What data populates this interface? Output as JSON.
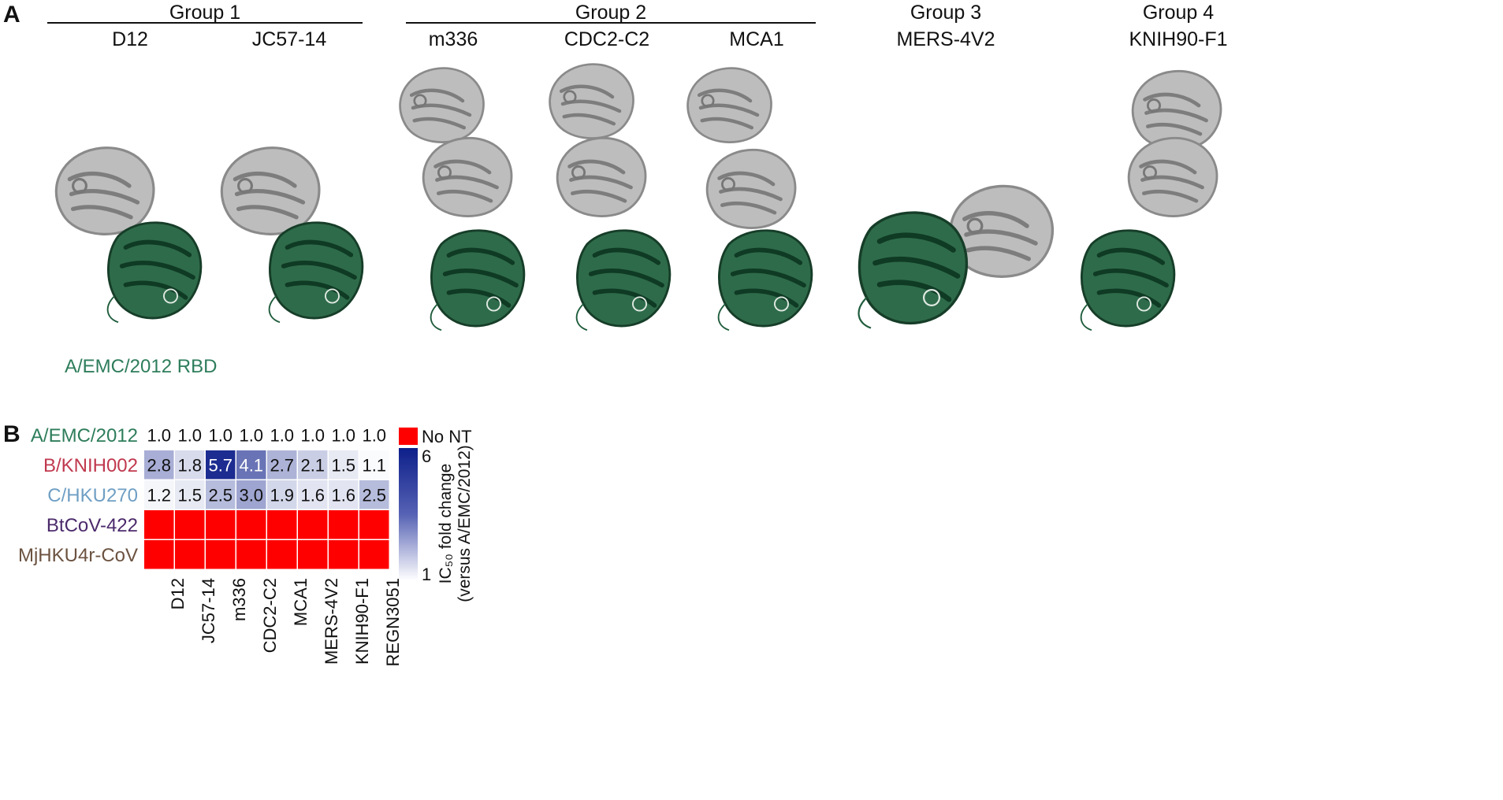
{
  "panel_a": {
    "letter": "A",
    "groups": [
      {
        "title": "Group 1",
        "antibodies": [
          "D12",
          "JC57-14"
        ]
      },
      {
        "title": "Group 2",
        "antibodies": [
          "m336",
          "CDC2-C2",
          "MCA1"
        ]
      },
      {
        "title": "Group 3",
        "antibodies": [
          "MERS-4V2"
        ]
      },
      {
        "title": "Group 4",
        "antibodies": [
          "KNIH90-F1"
        ]
      }
    ],
    "rbd_caption": "A/EMC/2012 RBD",
    "colors": {
      "rbd": "#1f5c3c",
      "antibody": "#a9a9a9",
      "rbd_caption": "#2e7d5b"
    }
  },
  "panel_b": {
    "letter": "B",
    "legend": {
      "no_nt_label": "No NT",
      "no_nt_color": "#ff0000",
      "max_label": "6",
      "min_label": "1",
      "axis_title_line1": "IC₅₀ fold change",
      "axis_title_line2": "(versus A/EMC/2012)",
      "color_low": "#ffffff",
      "color_high": "#0d1f8a"
    },
    "chart_data": {
      "type": "heatmap",
      "columns": [
        "D12",
        "JC57-14",
        "m336",
        "CDC2-C2",
        "MCA1",
        "MERS-4V2",
        "KNIH90-F1",
        "REGN3051"
      ],
      "rows": [
        {
          "label": "A/EMC/2012",
          "color": "#2e7d5b",
          "values": [
            1.0,
            1.0,
            1.0,
            1.0,
            1.0,
            1.0,
            1.0,
            1.0
          ],
          "text": [
            "1.0",
            "1.0",
            "1.0",
            "1.0",
            "1.0",
            "1.0",
            "1.0",
            "1.0"
          ]
        },
        {
          "label": "B/KNIH002",
          "color": "#c0394e",
          "values": [
            2.8,
            1.8,
            5.7,
            4.1,
            2.7,
            2.1,
            1.5,
            1.1
          ],
          "text": [
            "2.8",
            "1.8",
            "5.7",
            "4.1",
            "2.7",
            "2.1",
            "1.5",
            "1.1"
          ]
        },
        {
          "label": "C/HKU270",
          "color": "#6f9fc4",
          "values": [
            1.2,
            1.5,
            2.5,
            3.0,
            1.9,
            1.6,
            1.6,
            2.5
          ],
          "text": [
            "1.2",
            "1.5",
            "2.5",
            "3.0",
            "1.9",
            "1.6",
            "1.6",
            "2.5"
          ]
        },
        {
          "label": "BtCoV-422",
          "color": "#4b2a6b",
          "values": [
            null,
            null,
            null,
            null,
            null,
            null,
            null,
            null
          ],
          "text": [
            "",
            "",
            "",
            "",
            "",
            "",
            "",
            ""
          ]
        },
        {
          "label": "MjHKU4r-CoV",
          "color": "#6b5240",
          "values": [
            null,
            null,
            null,
            null,
            null,
            null,
            null,
            null
          ],
          "text": [
            "",
            "",
            "",
            "",
            "",
            "",
            "",
            ""
          ]
        }
      ],
      "scale_range": [
        1,
        6
      ],
      "null_meaning": "No NT"
    }
  }
}
